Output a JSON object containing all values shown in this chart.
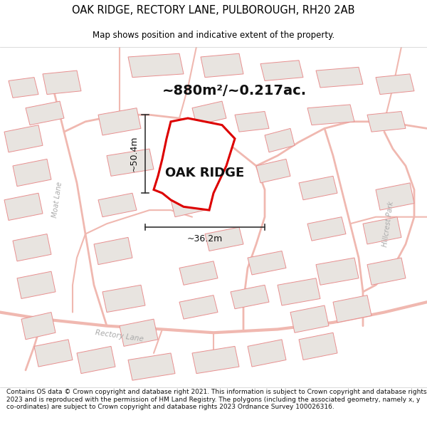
{
  "title_line1": "OAK RIDGE, RECTORY LANE, PULBOROUGH, RH20 2AB",
  "title_line2": "Map shows position and indicative extent of the property.",
  "area_text": "~880m²/~0.217ac.",
  "property_label": "OAK RIDGE",
  "dim_width": "~36.2m",
  "dim_height": "~50.4m",
  "footer_text": "Contains OS data © Crown copyright and database right 2021. This information is subject to Crown copyright and database rights 2023 and is reproduced with the permission of HM Land Registry. The polygons (including the associated geometry, namely x, y co-ordinates) are subject to Crown copyright and database rights 2023 Ordnance Survey 100026316.",
  "bg_color": "#ffffff",
  "map_bg": "#ffffff",
  "property_fill": "#ffffff",
  "property_edge": "#dd0000",
  "road_color": "#f0b8b0",
  "road_outline": "#e88880",
  "building_fill": "#e8e4e0",
  "building_edge": "#e89090",
  "road_label_color": "#aaaaaa",
  "title_color": "#000000",
  "footer_color": "#111111",
  "map_border": "#bbbbbb",
  "arrow_color": "#333333"
}
